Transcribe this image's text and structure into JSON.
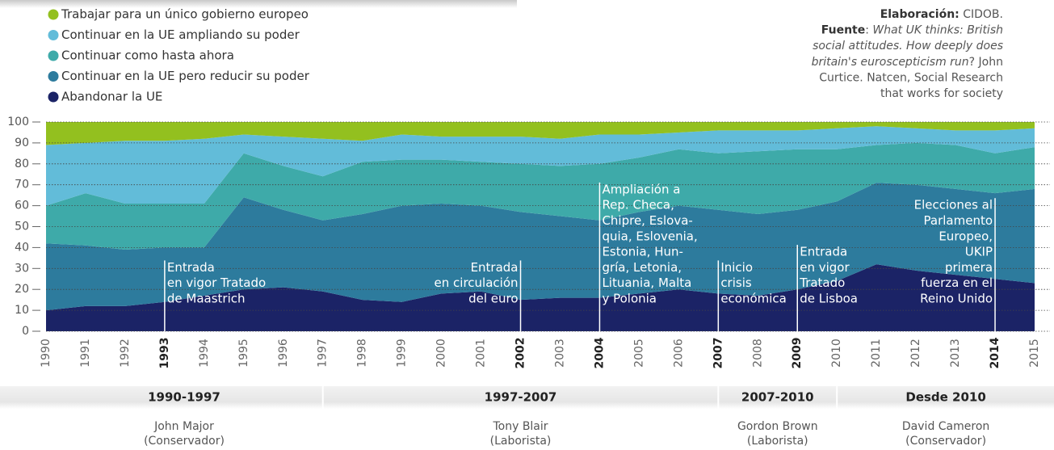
{
  "chart_data": {
    "type": "stacked_area",
    "x": [
      1990,
      1991,
      1992,
      1993,
      1994,
      1995,
      1996,
      1997,
      1998,
      1999,
      2000,
      2001,
      2002,
      2003,
      2004,
      2005,
      2006,
      2007,
      2008,
      2009,
      2010,
      2011,
      2012,
      2013,
      2014,
      2015
    ],
    "xlim": [
      1990,
      2015
    ],
    "xticks": [
      1990,
      1991,
      1992,
      1993,
      1994,
      1995,
      1996,
      1997,
      1998,
      1999,
      2000,
      2001,
      2002,
      2003,
      2004,
      2005,
      2006,
      2007,
      2008,
      2009,
      2010,
      2011,
      2012,
      2013,
      2014,
      2015
    ],
    "ylim": [
      0,
      100
    ],
    "yticks": [
      0,
      10,
      20,
      30,
      40,
      50,
      60,
      70,
      80,
      90,
      100
    ],
    "grid": true,
    "series": [
      {
        "name": "Trabajar para un único gobierno europeo",
        "color": "#93c01f",
        "values": [
          11,
          10,
          9,
          9,
          8,
          6,
          7,
          8,
          9,
          6,
          7,
          7,
          7,
          8,
          6,
          6,
          5,
          4,
          4,
          4,
          3,
          2,
          3,
          4,
          4,
          3
        ]
      },
      {
        "name": "Continuar en la UE ampliando su poder",
        "color": "#62bcd9",
        "values": [
          29,
          24,
          30,
          30,
          31,
          9,
          14,
          18,
          10,
          12,
          11,
          12,
          13,
          13,
          14,
          11,
          8,
          11,
          10,
          9,
          10,
          9,
          7,
          7,
          11,
          9
        ]
      },
      {
        "name": "Continuar como hasta ahora",
        "color": "#3eaaa9",
        "values": [
          18,
          25,
          22,
          21,
          21,
          21,
          21,
          21,
          25,
          22,
          21,
          21,
          23,
          24,
          27,
          26,
          27,
          27,
          30,
          29,
          25,
          18,
          20,
          21,
          19,
          20
        ]
      },
      {
        "name": "Continuar en la UE pero reducir su poder",
        "color": "#2d7b9d",
        "values": [
          32,
          29,
          27,
          26,
          23,
          44,
          37,
          34,
          41,
          46,
          43,
          41,
          42,
          39,
          37,
          39,
          40,
          40,
          39,
          38,
          38,
          39,
          41,
          41,
          41,
          45
        ]
      },
      {
        "name": "Abandonar la UE",
        "color": "#1b2366",
        "values": [
          10,
          12,
          12,
          14,
          17,
          20,
          21,
          19,
          15,
          14,
          18,
          19,
          15,
          16,
          16,
          18,
          20,
          18,
          17,
          20,
          24,
          32,
          29,
          27,
          25,
          23
        ]
      }
    ],
    "annotations": [
      {
        "x": 1993,
        "side": "right",
        "lines": [
          "Entrada",
          "en vigor Tratado",
          "de Maastrich"
        ]
      },
      {
        "x": 2002,
        "side": "left",
        "lines": [
          "Entrada",
          "en circulación",
          "del euro"
        ]
      },
      {
        "x": 2004,
        "side": "right",
        "lines": [
          "Ampliación a",
          "Rep. Checa,",
          "Chipre, Eslova-",
          "quia, Eslovenia,",
          "Estonia, Hun-",
          "gría, Letonia,",
          "Lituania, Malta",
          "y Polonia"
        ]
      },
      {
        "x": 2007,
        "side": "right",
        "lines": [
          "Inicio",
          "crisis",
          "económica"
        ]
      },
      {
        "x": 2009,
        "side": "right",
        "lines": [
          "Entrada",
          "en vigor",
          "Tratado",
          "de Lisboa"
        ]
      },
      {
        "x": 2014,
        "side": "left",
        "lines": [
          "Elecciones al",
          "Parlamento",
          "Europeo,",
          "UKIP",
          "primera",
          "fuerza en el",
          "Reino Unido"
        ]
      }
    ]
  },
  "credits": [
    [
      {
        "text": "Elaboración:",
        "style": "bold"
      },
      {
        "text": " CIDOB."
      }
    ],
    [
      {
        "text": "Fuente",
        "style": "bold"
      },
      {
        "text": ": "
      },
      {
        "text": "What UK thinks: British",
        "style": "italic"
      }
    ],
    [
      {
        "text": "social attitudes. How deeply does",
        "style": "italic"
      }
    ],
    [
      {
        "text": "britain's euroscepticism run",
        "style": "italic"
      },
      {
        "text": "? John"
      }
    ],
    [
      {
        "text": "Curtice. Natcen, Social Research"
      }
    ],
    [
      {
        "text": "that works for society"
      }
    ]
  ],
  "periods": [
    {
      "label": "1990-1997",
      "name": "John Major",
      "party": "(Conservador)"
    },
    {
      "label": "1997-2007",
      "name": "Tony Blair",
      "party": "(Laborista)"
    },
    {
      "label": "2007-2010",
      "name": "Gordon Brown",
      "party": "(Laborista)"
    },
    {
      "label": "Desde 2010",
      "name": "David Cameron",
      "party": "(Conservador)"
    }
  ]
}
